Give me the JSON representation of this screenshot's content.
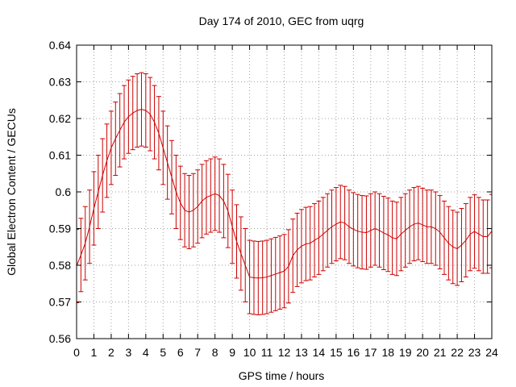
{
  "chart_data": {
    "type": "line",
    "title": "Day 174 of 2010, GEC from uqrg",
    "xlabel": "GPS time / hours",
    "ylabel": "Global Electron Content / GECUs",
    "xlim": [
      0,
      24
    ],
    "ylim": [
      0.56,
      0.64
    ],
    "xticks": [
      "0",
      "1",
      "2",
      "3",
      "4",
      "5",
      "6",
      "7",
      "8",
      "9",
      "10",
      "11",
      "12",
      "13",
      "14",
      "15",
      "16",
      "17",
      "18",
      "19",
      "20",
      "21",
      "22",
      "23",
      "24"
    ],
    "yticks": [
      "0.56",
      "0.57",
      "0.58",
      "0.59",
      "0.6",
      "0.61",
      "0.62",
      "0.63",
      "0.64"
    ],
    "grid": true,
    "color": "#cc0000",
    "error_bar": 0.01,
    "x": [
      0,
      0.25,
      0.5,
      0.75,
      1,
      1.25,
      1.5,
      1.75,
      2,
      2.25,
      2.5,
      2.75,
      3,
      3.25,
      3.5,
      3.75,
      4,
      4.25,
      4.5,
      4.75,
      5,
      5.25,
      5.5,
      5.75,
      6,
      6.25,
      6.5,
      6.75,
      7,
      7.25,
      7.5,
      7.75,
      8,
      8.25,
      8.5,
      8.75,
      9,
      9.25,
      9.5,
      9.75,
      10,
      10.25,
      10.5,
      10.75,
      11,
      11.25,
      11.5,
      11.75,
      12,
      12.25,
      12.5,
      12.75,
      13,
      13.25,
      13.5,
      13.75,
      14,
      14.25,
      14.5,
      14.75,
      15,
      15.25,
      15.5,
      15.75,
      16,
      16.25,
      16.5,
      16.75,
      17,
      17.25,
      17.5,
      17.75,
      18,
      18.25,
      18.5,
      18.75,
      19,
      19.25,
      19.5,
      19.75,
      20,
      20.25,
      20.5,
      20.75,
      21,
      21.25,
      21.5,
      21.75,
      22,
      22.25,
      22.5,
      22.75,
      23,
      23.25,
      23.5,
      23.75,
      24
    ],
    "y": [
      0.5798,
      0.5828,
      0.586,
      0.5905,
      0.5955,
      0.6,
      0.6045,
      0.6085,
      0.612,
      0.6145,
      0.6168,
      0.619,
      0.6205,
      0.6215,
      0.6222,
      0.6225,
      0.6222,
      0.6212,
      0.619,
      0.616,
      0.612,
      0.608,
      0.604,
      0.6,
      0.597,
      0.595,
      0.5945,
      0.595,
      0.596,
      0.5975,
      0.5985,
      0.599,
      0.5995,
      0.599,
      0.5975,
      0.5948,
      0.5905,
      0.5865,
      0.5832,
      0.58,
      0.5768,
      0.5766,
      0.5765,
      0.5766,
      0.5768,
      0.5772,
      0.5776,
      0.578,
      0.5784,
      0.5797,
      0.5826,
      0.5842,
      0.5852,
      0.5858,
      0.586,
      0.5868,
      0.5875,
      0.5885,
      0.5895,
      0.5905,
      0.5912,
      0.5918,
      0.5915,
      0.5905,
      0.5898,
      0.5893,
      0.589,
      0.5889,
      0.5895,
      0.59,
      0.5895,
      0.5888,
      0.5883,
      0.5875,
      0.5872,
      0.5885,
      0.5895,
      0.5905,
      0.5912,
      0.5915,
      0.591,
      0.5905,
      0.5905,
      0.59,
      0.589,
      0.5875,
      0.586,
      0.585,
      0.5845,
      0.5855,
      0.5868,
      0.5885,
      0.5892,
      0.5885,
      0.5878,
      0.5878,
      0.5893
    ]
  }
}
